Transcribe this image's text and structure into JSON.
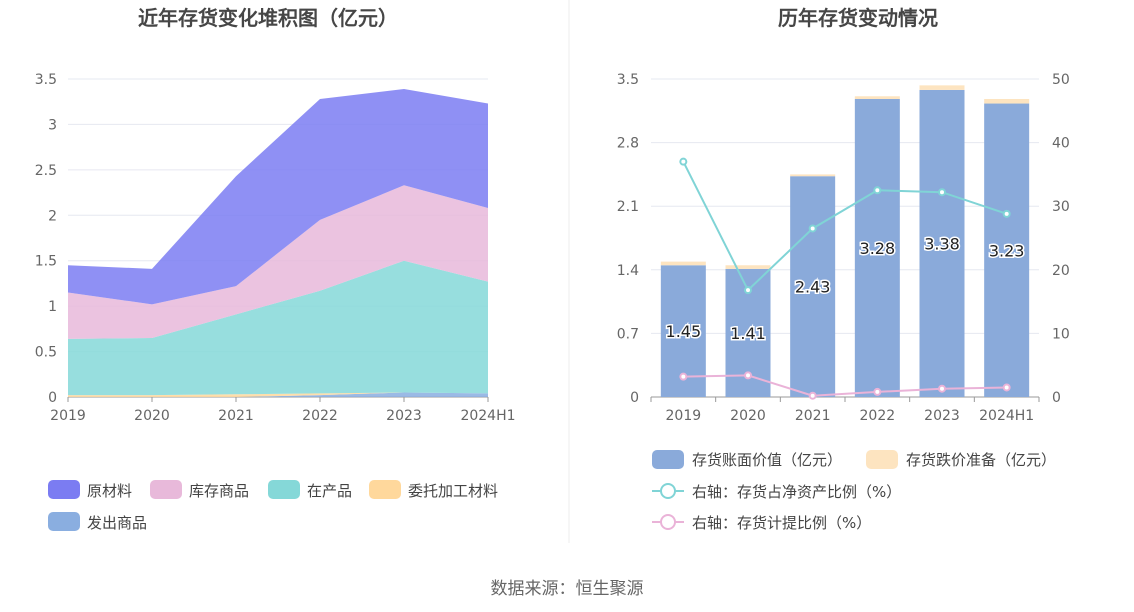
{
  "colors": {
    "raw_material": "#7b7cf2",
    "finished_goods": "#e8b9da",
    "wip": "#85d8d8",
    "consigned": "#ffd89c",
    "shipped": "#8aaee0",
    "book_value": "#8aaada",
    "impairment": "#fde4c0",
    "line_net_asset": "#80d4d6",
    "line_provision": "#eab3d8",
    "grid": "#e6e8f0",
    "axis_text": "#666666",
    "title_text": "#464646"
  },
  "chart_data": [
    {
      "type": "area",
      "stacked": true,
      "title": "近年存货变化堆积图（亿元）",
      "categories": [
        "2019",
        "2020",
        "2021",
        "2022",
        "2023",
        "2024H1"
      ],
      "ylim": [
        0,
        3.5
      ],
      "yticks": [
        "0",
        "0.5",
        "1",
        "1.5",
        "2",
        "2.5",
        "3",
        "3.5"
      ],
      "ytick_values": [
        0,
        0.5,
        1,
        1.5,
        2,
        2.5,
        3,
        3.5
      ],
      "series": [
        {
          "key": "shipped",
          "name": "发出商品",
          "values": [
            0.0,
            0.0,
            0.0,
            0.02,
            0.05,
            0.04
          ]
        },
        {
          "key": "consigned",
          "name": "委托加工材料",
          "values": [
            0.02,
            0.02,
            0.03,
            0.02,
            0.0,
            0.0
          ]
        },
        {
          "key": "wip",
          "name": "在产品",
          "values": [
            0.62,
            0.63,
            0.88,
            1.13,
            1.45,
            1.23
          ]
        },
        {
          "key": "finished_goods",
          "name": "库存商品",
          "values": [
            0.51,
            0.37,
            0.31,
            0.78,
            0.83,
            0.81
          ]
        },
        {
          "key": "raw_material",
          "name": "原材料",
          "values": [
            0.3,
            0.39,
            1.21,
            1.33,
            1.06,
            1.15
          ]
        }
      ],
      "legend": [
        "原材料",
        "库存商品",
        "在产品",
        "委托加工材料",
        "发出商品"
      ],
      "legend_keys": [
        "raw_material",
        "finished_goods",
        "wip",
        "consigned",
        "shipped"
      ]
    },
    {
      "type": "bar",
      "stacked": true,
      "title": "历年存货变动情况",
      "categories": [
        "2019",
        "2020",
        "2021",
        "2022",
        "2023",
        "2024H1"
      ],
      "ylim": [
        0,
        3.5
      ],
      "yticks": [
        "0",
        "0.7",
        "1.4",
        "2.1",
        "2.8",
        "3.5"
      ],
      "ytick_values": [
        0,
        0.7,
        1.4,
        2.1,
        2.8,
        3.5
      ],
      "y2lim": [
        0,
        50
      ],
      "y2ticks": [
        "0",
        "10",
        "20",
        "30",
        "40",
        "50"
      ],
      "y2tick_values": [
        0,
        10,
        20,
        30,
        40,
        50
      ],
      "bars": [
        {
          "key": "book_value",
          "name": "存货账面价值（亿元）",
          "values": [
            1.45,
            1.41,
            2.43,
            3.28,
            3.38,
            3.23
          ],
          "labels": [
            "1.45",
            "1.41",
            "2.43",
            "3.28",
            "3.38",
            "3.23"
          ]
        },
        {
          "key": "impairment",
          "name": "存货跌价准备（亿元）",
          "values": [
            0.04,
            0.04,
            0.02,
            0.03,
            0.05,
            0.05
          ]
        }
      ],
      "lines": [
        {
          "key": "line_net_asset",
          "name": "右轴：存货占净资产比例（%）",
          "values": [
            37.0,
            16.8,
            26.5,
            32.5,
            32.2,
            28.8
          ]
        },
        {
          "key": "line_provision",
          "name": "右轴：存货计提比例（%）",
          "values": [
            3.2,
            3.4,
            0.2,
            0.8,
            1.3,
            1.5
          ]
        }
      ]
    }
  ],
  "source": "数据来源：恒生聚源"
}
